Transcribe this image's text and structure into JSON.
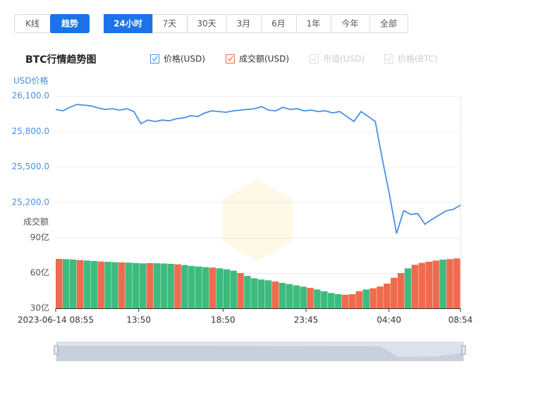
{
  "tabs": [
    "K线",
    "趋势"
  ],
  "ranges": [
    "24小时",
    "7天",
    "30天",
    "3月",
    "6月",
    "1年",
    "今年",
    "全部"
  ],
  "chart_title": "BTC行情趋势图",
  "inactive_legend": [
    "市值(USD)",
    "价格(BTC)"
  ],
  "chart_data": [
    {
      "type": "line",
      "name": "价格(USD)",
      "y_label": "USD价格",
      "color": "#4a90e2",
      "values": [
        25986,
        25974,
        26004,
        26028,
        26022,
        26016,
        25998,
        25986,
        25992,
        25980,
        25992,
        25968,
        25866,
        25896,
        25884,
        25896,
        25890,
        25908,
        25914,
        25932,
        25926,
        25956,
        25974,
        25968,
        25962,
        25974,
        25980,
        25986,
        25992,
        26010,
        25980,
        25974,
        26004,
        25986,
        25992,
        25974,
        25980,
        25968,
        25974,
        25956,
        25968,
        25926,
        25884,
        25968,
        25926,
        25884,
        25566,
        25266,
        24936,
        25128,
        25098,
        25104,
        25014,
        25056,
        25092,
        25128,
        25140,
        25176
      ],
      "ylim": [
        24900,
        26100
      ],
      "yticks": [
        {
          "value": 26100,
          "label": "26,100.0"
        },
        {
          "value": 25800,
          "label": "25,800.0"
        },
        {
          "value": 25500,
          "label": "25,500.0"
        },
        {
          "value": 25200,
          "label": "25,200.0"
        }
      ],
      "grid": true
    },
    {
      "type": "bar",
      "name": "成交额(USD)",
      "y_label": "成交额",
      "color": "#f06a4d",
      "values": [
        72,
        71.8,
        71.5,
        71,
        70.6,
        70.2,
        69.8,
        69.5,
        69.2,
        69,
        68.8,
        68.5,
        68.2,
        68.4,
        68.3,
        68.1,
        67.8,
        67.4,
        66.8,
        66,
        65.5,
        65,
        64.6,
        64,
        63.2,
        62,
        60,
        57.5,
        55.5,
        54.5,
        53.8,
        52.8,
        51.6,
        50.6,
        49.5,
        48.4,
        47.4,
        46,
        44.5,
        43,
        42,
        41.5,
        42,
        44.5,
        46,
        47,
        48.5,
        51,
        56,
        60,
        64,
        67,
        68.6,
        69.6,
        70.6,
        71.4,
        71.8,
        72.4
      ],
      "colors": [
        "#f06a4d",
        "#3dbb7e",
        "#3dbb7e",
        "#f06a4d",
        "#3dbb7e",
        "#3dbb7e",
        "#f06a4d",
        "#3dbb7e",
        "#3dbb7e",
        "#f06a4d",
        "#3dbb7e",
        "#3dbb7e",
        "#3dbb7e",
        "#f06a4d",
        "#3dbb7e",
        "#3dbb7e",
        "#3dbb7e",
        "#f06a4d",
        "#3dbb7e",
        "#3dbb7e",
        "#3dbb7e",
        "#3dbb7e",
        "#f06a4d",
        "#3dbb7e",
        "#3dbb7e",
        "#3dbb7e",
        "#f06a4d",
        "#3dbb7e",
        "#3dbb7e",
        "#3dbb7e",
        "#3dbb7e",
        "#f06a4d",
        "#3dbb7e",
        "#3dbb7e",
        "#3dbb7e",
        "#3dbb7e",
        "#f06a4d",
        "#3dbb7e",
        "#3dbb7e",
        "#3dbb7e",
        "#3dbb7e",
        "#f06a4d",
        "#f06a4d",
        "#f06a4d",
        "#3dbb7e",
        "#f06a4d",
        "#f06a4d",
        "#f06a4d",
        "#f06a4d",
        "#f06a4d",
        "#3dbb7e",
        "#f06a4d",
        "#f06a4d",
        "#f06a4d",
        "#f06a4d",
        "#3dbb7e",
        "#f06a4d",
        "#f06a4d"
      ],
      "ylim": [
        30,
        90
      ],
      "yticks": [
        {
          "value": 90,
          "label": "90亿"
        },
        {
          "value": 60,
          "label": "60亿"
        },
        {
          "value": 30,
          "label": "30亿"
        }
      ],
      "xlim": [
        0,
        1439
      ],
      "xticks": [
        {
          "value": 0,
          "label": "2023-06-14 08:55"
        },
        {
          "value": 295,
          "label": "13:50"
        },
        {
          "value": 595,
          "label": "18:50"
        },
        {
          "value": 890,
          "label": "23:45"
        },
        {
          "value": 1185,
          "label": "04:40"
        },
        {
          "value": 1439,
          "label": "08:54"
        }
      ],
      "grid": true
    }
  ]
}
